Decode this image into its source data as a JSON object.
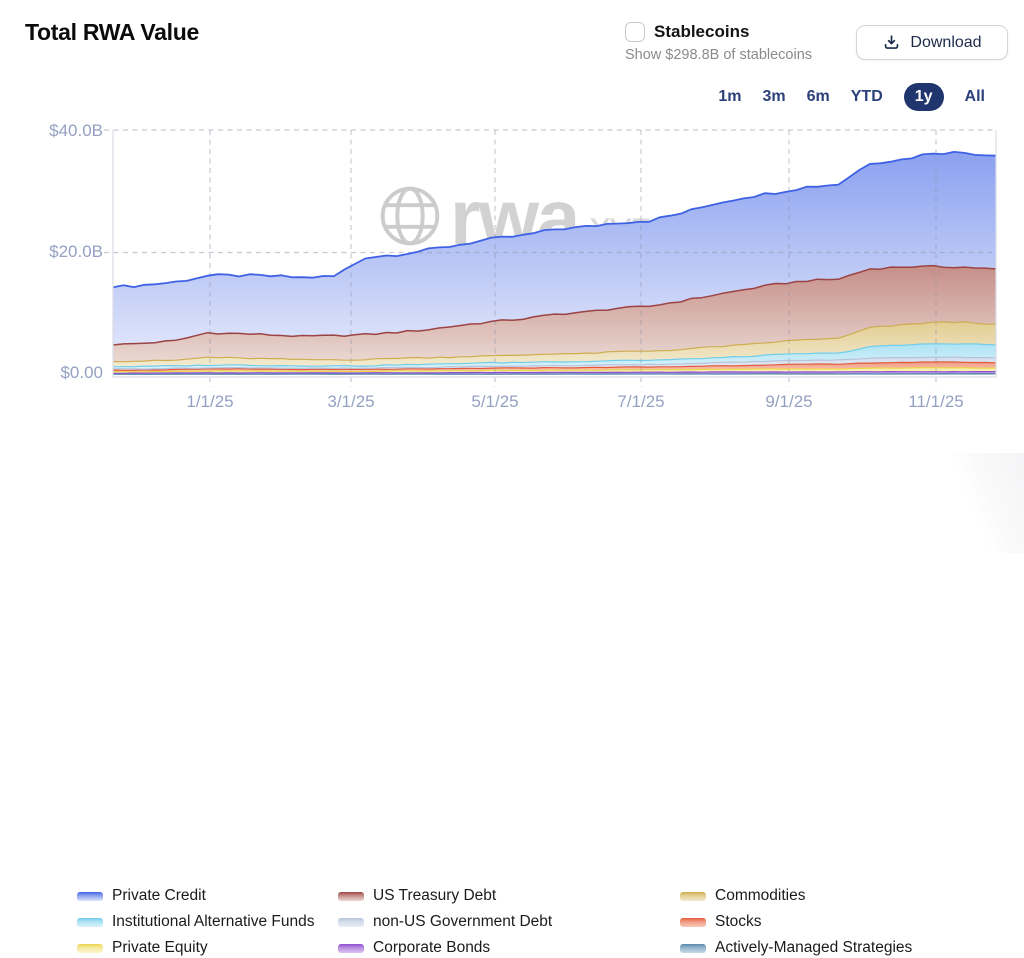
{
  "header": {
    "title": "Total RWA Value"
  },
  "stablecoins": {
    "label": "Stablecoins",
    "caption": "Show $298.8B of stablecoins",
    "checked": false
  },
  "download": {
    "label": "Download"
  },
  "range_selector": {
    "options": [
      "1m",
      "3m",
      "6m",
      "YTD",
      "1y",
      "All"
    ],
    "selected": "1y"
  },
  "watermark": {
    "brand": "rwa",
    "tld": ".xyz"
  },
  "colors": {
    "accent_navy": "#20356e",
    "range_link": "#2c4079",
    "axis_label": "#94a1c2",
    "grid": "#9aa0ad"
  },
  "chart_data": {
    "type": "area",
    "stacked": true,
    "title": "Total RWA Value",
    "unit": "USD billions",
    "ylim": [
      0,
      40
    ],
    "y_ticks": [
      "$40.0B",
      "$20.0B",
      "$0.00"
    ],
    "y_tick_values": [
      40,
      20,
      0
    ],
    "x_ticks": [
      "1/1/25",
      "3/1/25",
      "5/1/25",
      "7/1/25",
      "9/1/25",
      "11/1/25"
    ],
    "x_range": [
      "late Nov 2024",
      "late Nov 2025"
    ],
    "grid": "dashed",
    "legend_position": "bottom",
    "series": [
      {
        "name": "Private Credit",
        "line": "#3f61e4",
        "fill_top": "#8ba1f0",
        "fill_bottom": "#dde3fa",
        "values": [
          9.4,
          9.5,
          9.6,
          9.3,
          9.5,
          9.6,
          9.6,
          9.7,
          12.6,
          12.7,
          13.0,
          13.2,
          13.5,
          13.6,
          13.9,
          13.9,
          14.0,
          14.0,
          14.3,
          14.9,
          15.1,
          15.0,
          15.3,
          15.5,
          17.3,
          17.5,
          18.6,
          18.7,
          18.5
        ]
      },
      {
        "name": "US Treasury Debt",
        "line": "#9c4343",
        "fill_top": "#c68e88",
        "fill_bottom": "#ead8d2",
        "values": [
          2.7,
          2.9,
          3.2,
          4.0,
          4.0,
          3.9,
          3.8,
          3.9,
          4.1,
          4.2,
          4.6,
          5.1,
          5.6,
          5.9,
          6.4,
          6.8,
          7.1,
          7.3,
          7.9,
          8.4,
          9.0,
          9.4,
          9.6,
          9.7,
          9.6,
          9.5,
          9.1,
          9.0,
          9.0
        ]
      },
      {
        "name": "Commodities",
        "line": "#cead50",
        "fill_top": "#e2cd92",
        "fill_bottom": "#f3ead0",
        "values": [
          0.85,
          0.9,
          0.9,
          1.3,
          1.1,
          1.1,
          1.0,
          1.0,
          1.0,
          1.1,
          1.1,
          1.1,
          1.1,
          1.2,
          1.3,
          1.3,
          1.4,
          1.5,
          1.6,
          1.8,
          1.9,
          2.1,
          2.3,
          2.4,
          3.1,
          3.3,
          3.5,
          3.5,
          3.4
        ]
      },
      {
        "name": "Institutional Alternative Funds",
        "line": "#72cdea",
        "fill_top": "#aee3f4",
        "fill_bottom": "#d9f2fa",
        "values": [
          0.35,
          0.4,
          0.4,
          0.45,
          0.45,
          0.4,
          0.4,
          0.4,
          0.4,
          0.45,
          0.5,
          0.55,
          0.6,
          0.6,
          0.65,
          0.65,
          0.7,
          0.7,
          0.75,
          0.8,
          0.9,
          1.0,
          1.1,
          1.1,
          1.9,
          2.0,
          2.2,
          2.2,
          2.1
        ]
      },
      {
        "name": "non-US Government Debt",
        "line": "#b6c3da",
        "fill_top": "#d3ddec",
        "fill_bottom": "#e8edf6",
        "values": [
          0.2,
          0.2,
          0.2,
          0.2,
          0.2,
          0.2,
          0.2,
          0.2,
          0.2,
          0.25,
          0.25,
          0.3,
          0.3,
          0.3,
          0.35,
          0.35,
          0.4,
          0.4,
          0.45,
          0.5,
          0.55,
          0.6,
          0.65,
          0.7,
          0.75,
          0.8,
          0.8,
          0.8,
          0.8
        ]
      },
      {
        "name": "Stocks",
        "line": "#e25a3a",
        "fill_top": "#f09b82",
        "fill_bottom": "#f8c9ba",
        "values": [
          0.25,
          0.25,
          0.3,
          0.3,
          0.35,
          0.3,
          0.3,
          0.3,
          0.3,
          0.3,
          0.3,
          0.35,
          0.35,
          0.4,
          0.4,
          0.4,
          0.45,
          0.45,
          0.5,
          0.55,
          0.6,
          0.7,
          0.75,
          0.75,
          0.85,
          0.9,
          0.9,
          0.9,
          0.85
        ]
      },
      {
        "name": "Private Equity",
        "line": "#ecd44b",
        "fill_top": "#f5ea9e",
        "fill_bottom": "#fbf5cd",
        "values": [
          0.25,
          0.25,
          0.25,
          0.3,
          0.3,
          0.3,
          0.25,
          0.25,
          0.25,
          0.3,
          0.3,
          0.3,
          0.35,
          0.35,
          0.35,
          0.35,
          0.4,
          0.4,
          0.4,
          0.45,
          0.45,
          0.5,
          0.5,
          0.5,
          0.6,
          0.6,
          0.65,
          0.65,
          0.6
        ]
      },
      {
        "name": "Corporate Bonds",
        "line": "#8c4fd2",
        "fill_top": "#b98ae0",
        "fill_bottom": "#dcc6f1",
        "values": [
          0.18,
          0.18,
          0.2,
          0.2,
          0.2,
          0.2,
          0.2,
          0.2,
          0.2,
          0.22,
          0.22,
          0.25,
          0.25,
          0.25,
          0.27,
          0.27,
          0.27,
          0.27,
          0.28,
          0.3,
          0.3,
          0.3,
          0.3,
          0.3,
          0.32,
          0.33,
          0.33,
          0.33,
          0.33
        ]
      },
      {
        "name": "Actively-Managed Strategies",
        "line": "#5d87ad",
        "fill_top": "#93b5cd",
        "fill_bottom": "#c6d9e7",
        "values": [
          0.12,
          0.12,
          0.15,
          0.15,
          0.15,
          0.15,
          0.15,
          0.15,
          0.15,
          0.15,
          0.15,
          0.15,
          0.15,
          0.16,
          0.17,
          0.17,
          0.18,
          0.18,
          0.18,
          0.19,
          0.2,
          0.2,
          0.2,
          0.2,
          0.21,
          0.22,
          0.22,
          0.22,
          0.22
        ]
      }
    ]
  }
}
